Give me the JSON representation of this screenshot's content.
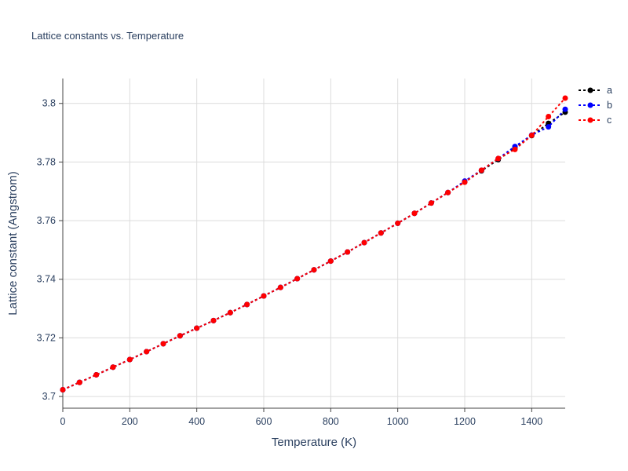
{
  "chart_data": {
    "type": "line",
    "title": "Lattice constants vs. Temperature",
    "xlabel": "Temperature (K)",
    "ylabel": "Lattice constant (Angstrom)",
    "xlim": [
      0,
      1500
    ],
    "ylim": [
      3.696,
      3.8085
    ],
    "x_ticks": [
      0,
      200,
      400,
      600,
      800,
      1000,
      1200,
      1400
    ],
    "x_tick_labels": [
      "0",
      "200",
      "400",
      "600",
      "800",
      "1000",
      "1200",
      "1400"
    ],
    "y_ticks": [
      3.7,
      3.72,
      3.74,
      3.76,
      3.78,
      3.8
    ],
    "y_tick_labels": [
      "3.7",
      "3.72",
      "3.74",
      "3.76",
      "3.78",
      "3.8"
    ],
    "grid": true,
    "legend_position": "top-right",
    "x": [
      0,
      50,
      100,
      150,
      200,
      250,
      300,
      350,
      400,
      450,
      500,
      550,
      600,
      650,
      700,
      750,
      800,
      850,
      900,
      950,
      1000,
      1050,
      1100,
      1150,
      1200,
      1250,
      1300,
      1350,
      1400,
      1450,
      1500
    ],
    "series": [
      {
        "name": "a",
        "color": "#000000",
        "values": [
          3.7023,
          3.7048,
          3.7074,
          3.71,
          3.7126,
          3.7153,
          3.718,
          3.7207,
          3.7233,
          3.7259,
          3.7286,
          3.7314,
          3.7343,
          3.7372,
          3.7402,
          3.7432,
          3.7462,
          3.7493,
          3.7525,
          3.7558,
          3.7591,
          3.7625,
          3.766,
          3.7696,
          3.7732,
          3.777,
          3.7808,
          3.7848,
          3.789,
          3.7932,
          3.797
        ]
      },
      {
        "name": "b",
        "color": "#0000ff",
        "values": [
          3.7023,
          3.7048,
          3.7074,
          3.71,
          3.7126,
          3.7153,
          3.718,
          3.7207,
          3.7233,
          3.7259,
          3.7286,
          3.7314,
          3.7343,
          3.7372,
          3.7402,
          3.7432,
          3.7462,
          3.7493,
          3.7525,
          3.7558,
          3.7591,
          3.7625,
          3.766,
          3.7696,
          3.7735,
          3.7772,
          3.7812,
          3.7853,
          3.7892,
          3.792,
          3.798
        ]
      },
      {
        "name": "c",
        "color": "#ff0000",
        "values": [
          3.7023,
          3.7048,
          3.7074,
          3.71,
          3.7126,
          3.7153,
          3.718,
          3.7207,
          3.7233,
          3.7259,
          3.7286,
          3.7314,
          3.7343,
          3.7372,
          3.7402,
          3.7432,
          3.7462,
          3.7493,
          3.7525,
          3.7558,
          3.7591,
          3.7625,
          3.766,
          3.7696,
          3.7731,
          3.7772,
          3.7812,
          3.7843,
          3.7891,
          3.7955,
          3.8018
        ]
      }
    ]
  }
}
